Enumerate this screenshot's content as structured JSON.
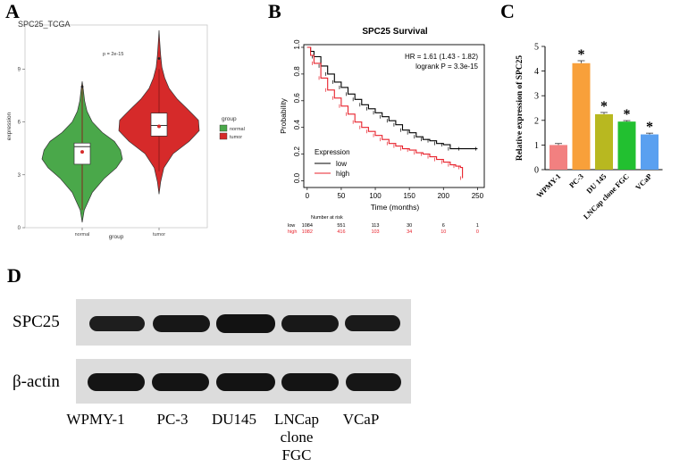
{
  "panels": {
    "a": "A",
    "b": "B",
    "c": "C",
    "d": "D"
  },
  "chart_data": [
    {
      "type": "violin",
      "title": "SPC25_TCGA",
      "annotation": "p = 2e-15",
      "xlabel": "group",
      "ylabel": "expression",
      "categories": [
        "normal",
        "tumor"
      ],
      "yticks": [
        0,
        3,
        6,
        9
      ],
      "ylim": [
        0,
        11.5
      ],
      "legend": {
        "title": "group",
        "entries": [
          "normal",
          "tumor"
        ],
        "placement": "right"
      },
      "colors": {
        "normal": "#4aa84a",
        "tumor": "#d62a2a"
      },
      "series": [
        {
          "name": "normal",
          "q1": 3.6,
          "median": 4.6,
          "q3": 4.8,
          "mean": 4.3,
          "whisker_low": 1.0,
          "whisker_high": 8.1,
          "outlier_high": 8.0,
          "density": [
            [
              0.3,
              0.0
            ],
            [
              1.0,
              0.05
            ],
            [
              2.0,
              0.25
            ],
            [
              2.8,
              0.55
            ],
            [
              3.4,
              0.85
            ],
            [
              3.9,
              1.0
            ],
            [
              4.4,
              0.95
            ],
            [
              4.9,
              0.8
            ],
            [
              5.4,
              0.5
            ],
            [
              6.0,
              0.25
            ],
            [
              6.6,
              0.12
            ],
            [
              7.2,
              0.06
            ],
            [
              7.8,
              0.03
            ],
            [
              8.3,
              0.0
            ]
          ]
        },
        {
          "name": "tumor",
          "q1": 5.2,
          "median": 5.8,
          "q3": 6.5,
          "mean": 5.75,
          "whisker_low": 3.2,
          "whisker_high": 9.0,
          "outlier_high": 9.6,
          "density": [
            [
              1.9,
              0.0
            ],
            [
              2.6,
              0.04
            ],
            [
              3.4,
              0.12
            ],
            [
              4.2,
              0.35
            ],
            [
              4.9,
              0.75
            ],
            [
              5.5,
              1.0
            ],
            [
              6.1,
              0.98
            ],
            [
              6.7,
              0.72
            ],
            [
              7.3,
              0.45
            ],
            [
              7.9,
              0.25
            ],
            [
              8.5,
              0.14
            ],
            [
              9.1,
              0.07
            ],
            [
              9.8,
              0.04
            ],
            [
              10.6,
              0.015
            ],
            [
              11.2,
              0.0
            ]
          ]
        }
      ]
    },
    {
      "type": "line",
      "title": "SPC25 Survival",
      "xlabel": "Time (months)",
      "ylabel": "Probability",
      "xticks": [
        0,
        50,
        100,
        150,
        200,
        250
      ],
      "yticks": [
        0.0,
        0.2,
        0.4,
        0.6,
        0.8,
        1.0
      ],
      "xlim": [
        -5,
        260
      ],
      "ylim": [
        -0.05,
        1.02
      ],
      "stats": {
        "hr": "HR = 1.61 (1.43 - 1.82)",
        "logrank": "logrank P = 3.3e-15"
      },
      "legend": {
        "title": "Expression",
        "entries": [
          "low",
          "high"
        ],
        "placement": "bottom-left"
      },
      "colors": {
        "low": "#000000",
        "high": "#e8212b"
      },
      "series": [
        {
          "name": "low",
          "x": [
            0,
            5,
            10,
            20,
            30,
            40,
            50,
            60,
            70,
            80,
            90,
            100,
            110,
            120,
            130,
            140,
            150,
            160,
            170,
            180,
            190,
            200,
            210,
            225,
            250
          ],
          "y": [
            1.0,
            0.97,
            0.93,
            0.86,
            0.8,
            0.74,
            0.7,
            0.65,
            0.61,
            0.57,
            0.54,
            0.51,
            0.48,
            0.45,
            0.42,
            0.38,
            0.36,
            0.33,
            0.31,
            0.3,
            0.28,
            0.27,
            0.24,
            0.24,
            0.24
          ]
        },
        {
          "name": "high",
          "x": [
            0,
            5,
            10,
            20,
            30,
            40,
            50,
            60,
            70,
            80,
            90,
            100,
            110,
            120,
            130,
            140,
            150,
            160,
            170,
            180,
            190,
            200,
            210,
            218,
            225,
            228
          ],
          "y": [
            1.0,
            0.94,
            0.88,
            0.77,
            0.68,
            0.62,
            0.56,
            0.5,
            0.44,
            0.4,
            0.37,
            0.34,
            0.31,
            0.28,
            0.26,
            0.24,
            0.23,
            0.21,
            0.2,
            0.18,
            0.16,
            0.14,
            0.12,
            0.11,
            0.1,
            0.02
          ]
        }
      ],
      "risk_table": {
        "heading": "Number at risk",
        "rows": [
          {
            "name": "low",
            "values": [
              "1084",
              "551",
              "113",
              "30",
              "6",
              "1"
            ]
          },
          {
            "name": "high",
            "values": [
              "1082",
              "416",
              "103",
              "34",
              "10",
              "0"
            ]
          }
        ]
      }
    },
    {
      "type": "bar",
      "ylabel": "Relative expression of SPC25",
      "categories": [
        "WPMY-1",
        "PC-3",
        "DU 145",
        "LNCap clone FGC",
        "VCaP"
      ],
      "values": [
        1.0,
        4.32,
        2.25,
        1.95,
        1.43
      ],
      "errors": [
        0.06,
        0.1,
        0.07,
        0.04,
        0.05
      ],
      "significance": [
        "",
        "*",
        "*",
        "*",
        "*"
      ],
      "colors": [
        "#f28080",
        "#f8a03a",
        "#b8b820",
        "#22c030",
        "#5aa0f0"
      ],
      "yticks": [
        0,
        1,
        2,
        3,
        4,
        5
      ],
      "ylim": [
        0,
        5
      ]
    }
  ],
  "western_blot": {
    "rows": [
      "SPC25",
      "β-actin"
    ],
    "lanes": [
      "WPMY-1",
      "PC-3",
      "DU145",
      "LNCap\nclone\nFGC",
      "VCaP"
    ]
  }
}
